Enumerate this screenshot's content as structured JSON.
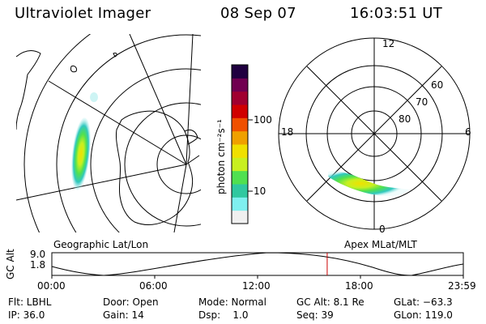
{
  "header": {
    "instrument": "Ultraviolet Imager",
    "date": "08 Sep 07",
    "time": "16:03:51 UT"
  },
  "panels": {
    "geographic_label": "Geographic Lat/Lon",
    "apex_label": "Apex MLat/MLT"
  },
  "colorbar": {
    "unit_label": "photon cm⁻²s⁻¹",
    "ticks": [
      "100",
      "10"
    ],
    "scale": "log",
    "colors": [
      "#f0f0f0",
      "#7ff0f0",
      "#30c8a0",
      "#50e050",
      "#c8f020",
      "#f0e000",
      "#f0a000",
      "#f05000",
      "#d00000",
      "#a00030",
      "#700050",
      "#200040"
    ]
  },
  "apex_grid": {
    "lat_labels": [
      "60",
      "70",
      "80"
    ],
    "mlt_labels": {
      "top": "12",
      "left": "18",
      "right": "6",
      "bottom": "0"
    }
  },
  "orbit_plot": {
    "y_axis_label": "GC Alt",
    "y_ticks": [
      "9.0",
      "1.8"
    ],
    "x_ticks": [
      "00:00",
      "06:00",
      "12:00",
      "18:00",
      "23:59"
    ],
    "marker_time_hours": 16.06
  },
  "footer": {
    "flt": "Flt: LBHL",
    "ip": "IP: 36.0",
    "door": "Door: Open",
    "gain": "Gain: 14",
    "mode": "Mode: Normal",
    "dsp": "Dsp:    1.0",
    "gc_alt": "GC Alt: 8.1 Re",
    "seq": "Seq: 39",
    "glat": "GLat: −63.3",
    "glon": "GLon: 119.0"
  },
  "colors": {
    "background": "#ffffff",
    "foreground": "#000000",
    "marker": "#cc0000"
  }
}
